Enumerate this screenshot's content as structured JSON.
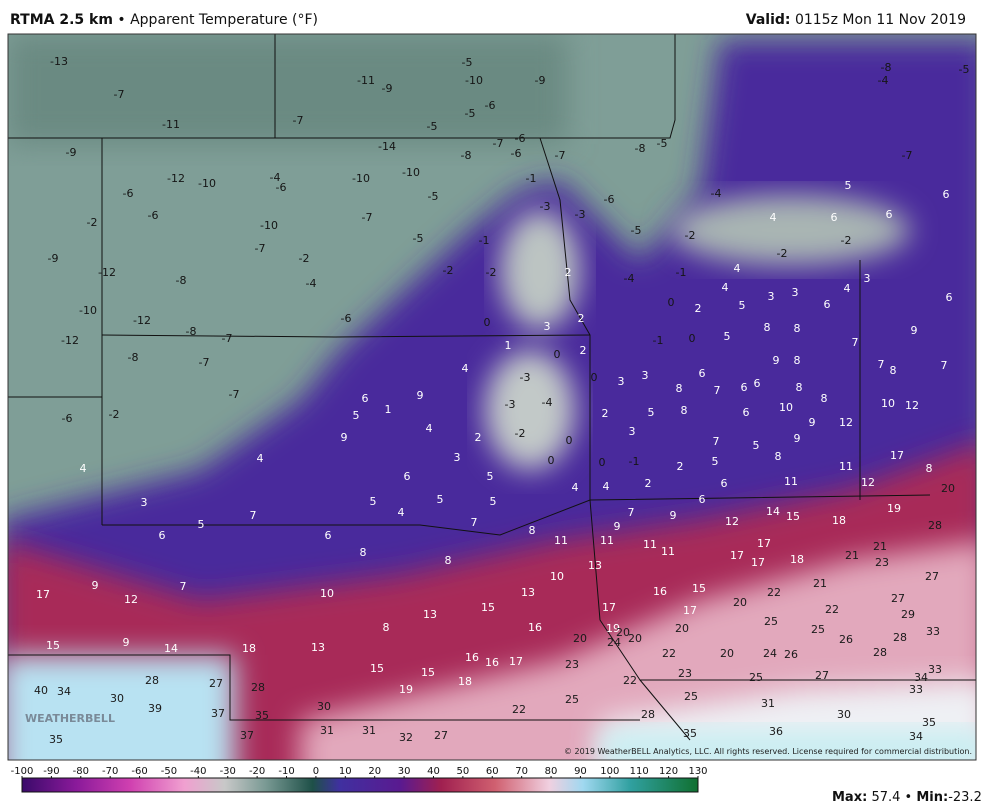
{
  "header": {
    "product": "RTMA 2.5 km",
    "separator": "•",
    "field": "Apparent Temperature (°F)",
    "valid_label": "Valid:",
    "valid_time": "0115z Mon 11 Nov 2019"
  },
  "map": {
    "labels": [
      -13,
      -7,
      -11,
      -7,
      -11,
      -9,
      -10,
      -9,
      -5,
      -6,
      -5,
      -5,
      -7,
      -6,
      -6,
      -8,
      -14,
      -7,
      -8,
      -5,
      -8,
      -5,
      -4,
      -7,
      -9,
      -12,
      -10,
      -6,
      -6,
      -2,
      -4,
      -6,
      -10,
      -10,
      -5,
      -7,
      -10,
      -7,
      -5,
      -1,
      -3,
      -1,
      -3,
      -6,
      -5,
      -2,
      -4,
      4,
      6,
      6,
      6,
      5,
      -2,
      -2,
      4,
      4,
      3,
      3,
      6,
      4,
      6,
      3,
      -9,
      -12,
      -8,
      -2,
      -4,
      -2,
      -2,
      2,
      -4,
      -1,
      0,
      2,
      5,
      -10,
      -12,
      -8,
      -7,
      -6,
      -12,
      -8,
      -7,
      -7,
      3,
      2,
      0,
      1,
      0,
      2,
      -1,
      0,
      5,
      8,
      8,
      7,
      9,
      4,
      9,
      6,
      1,
      5,
      4,
      9,
      4,
      2,
      3,
      -3,
      -4,
      -3,
      -2,
      0,
      0,
      0,
      3,
      3,
      8,
      6,
      7,
      6,
      6,
      9,
      8,
      8,
      8,
      10,
      6,
      8,
      5,
      2,
      3,
      7,
      5,
      9,
      9,
      12,
      10,
      12,
      7,
      8,
      7,
      8,
      5,
      2,
      -1,
      0,
      5,
      4,
      4,
      2,
      6,
      11,
      11,
      12,
      17,
      8,
      20,
      -6,
      -2,
      4,
      3,
      6,
      5,
      5,
      5,
      4,
      7,
      8,
      7,
      5,
      6,
      6,
      8,
      8,
      11,
      7,
      9,
      9,
      6,
      12,
      14,
      15,
      18,
      19,
      28,
      11,
      11,
      11,
      17,
      17,
      17,
      18,
      21,
      21,
      23,
      27,
      9,
      7,
      17,
      12,
      10,
      10,
      13,
      13,
      15,
      13,
      8,
      17,
      16,
      15,
      17,
      20,
      22,
      21,
      22,
      27,
      29,
      16,
      20,
      19,
      20,
      20,
      24,
      20,
      25,
      25,
      26,
      28,
      33,
      15,
      9,
      14,
      18,
      13,
      16,
      16,
      17,
      15,
      15,
      18,
      19,
      23,
      22,
      20,
      24,
      26,
      28,
      33,
      22,
      23,
      25,
      27,
      34,
      33,
      40,
      34,
      30,
      28,
      39,
      27,
      28,
      37,
      35,
      30,
      25,
      25,
      31,
      22,
      28,
      30,
      35,
      36,
      35,
      34,
      37,
      31,
      31,
      32,
      27,
      35
    ],
    "logo": "WEATHERBELL",
    "copyright": "© 2019 WeatherBELL Analytics, LLC. All rights reserved. License required for commercial distribution."
  },
  "colorbar": {
    "ticks": [
      -100,
      -90,
      -80,
      -70,
      -60,
      -50,
      -40,
      -30,
      -20,
      -10,
      0,
      10,
      20,
      30,
      40,
      50,
      60,
      70,
      80,
      90,
      100,
      110,
      120,
      130
    ]
  },
  "footer": {
    "max_label": "Max:",
    "max": 57.4,
    "separator": "•",
    "min_label": "Min:",
    "min": -23.2
  }
}
